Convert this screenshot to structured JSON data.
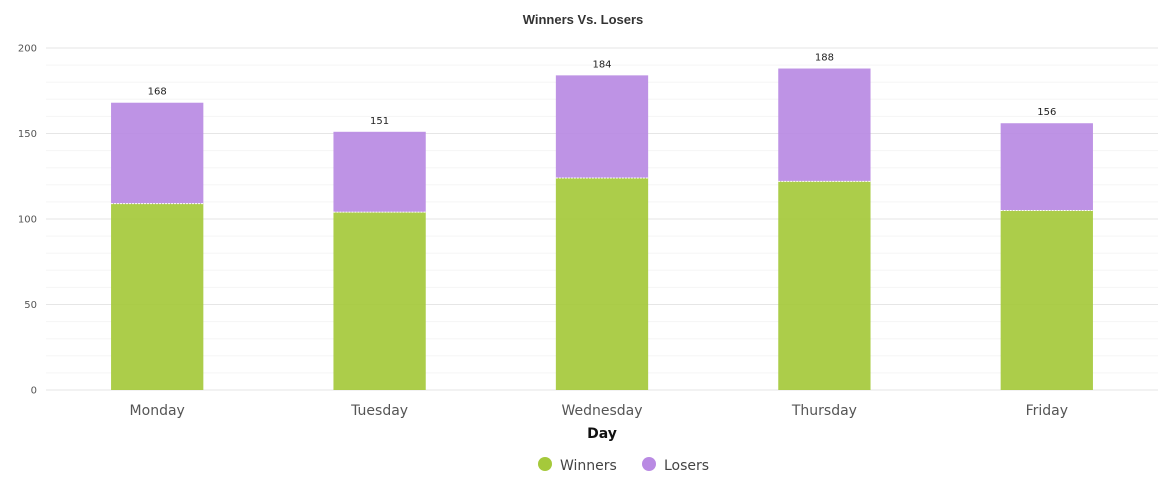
{
  "chart_data": {
    "type": "bar",
    "stacked": true,
    "title": "Winners Vs. Losers",
    "xlabel": "Day",
    "ylabel": "",
    "categories": [
      "Monday",
      "Tuesday",
      "Wednesday",
      "Thursday",
      "Friday"
    ],
    "series": [
      {
        "name": "Winners",
        "color": "#a5c93b",
        "values": [
          109,
          104,
          124,
          122,
          105
        ]
      },
      {
        "name": "Losers",
        "color": "#b98ae3",
        "values": [
          59,
          47,
          60,
          66,
          51
        ]
      }
    ],
    "totals": [
      168,
      151,
      184,
      188,
      156
    ],
    "ylim": [
      0,
      200
    ],
    "yticks": [
      0,
      50,
      100,
      150,
      200
    ],
    "grid": true,
    "legend_position": "bottom"
  }
}
